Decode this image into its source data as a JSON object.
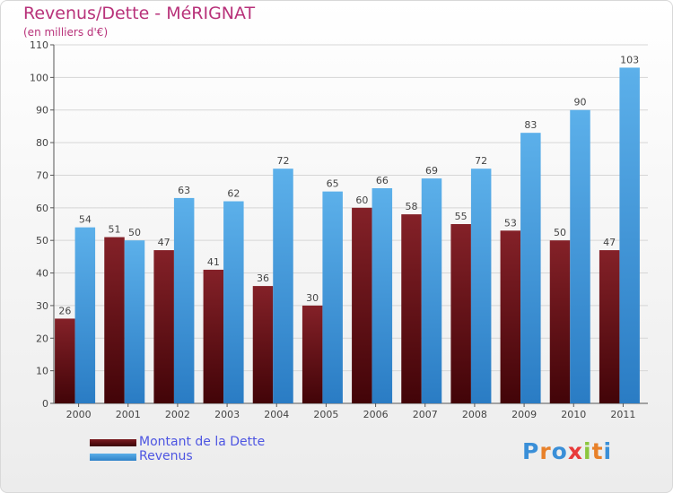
{
  "title": "Revenus/Dette - MéRIGNAT",
  "subtitle": "(en milliers d'€)",
  "colors": {
    "dette": "#6b1218",
    "revenus": "#4aa3e4",
    "title": "#b8327a",
    "legend_text": "#4d55e2"
  },
  "legend": {
    "dette_label": "Montant de la Dette",
    "revenus_label": "Revenus"
  },
  "logo": {
    "letters": [
      "P",
      "r",
      "o",
      "x",
      "i",
      "t",
      "i"
    ],
    "colors": [
      "#3a8fd8",
      "#e8812a",
      "#3a8fd8",
      "#e83a3a",
      "#8cc63f",
      "#e8812a",
      "#3a8fd8"
    ]
  },
  "chart_data": {
    "type": "bar",
    "title": "Revenus/Dette - MéRIGNAT",
    "ylabel": "(en milliers d'€)",
    "xlabel": "",
    "ylim": [
      0,
      110
    ],
    "yticks": [
      0,
      10,
      20,
      30,
      40,
      50,
      60,
      70,
      80,
      90,
      100,
      110
    ],
    "grid": true,
    "categories": [
      "2000",
      "2001",
      "2002",
      "2003",
      "2004",
      "2005",
      "2006",
      "2007",
      "2008",
      "2009",
      "2010",
      "2011"
    ],
    "series": [
      {
        "name": "Montant de la Dette",
        "values": [
          26,
          51,
          47,
          41,
          36,
          30,
          60,
          58,
          55,
          53,
          50,
          47
        ]
      },
      {
        "name": "Revenus",
        "values": [
          54,
          50,
          63,
          62,
          72,
          65,
          66,
          69,
          72,
          83,
          90,
          103
        ]
      }
    ]
  }
}
